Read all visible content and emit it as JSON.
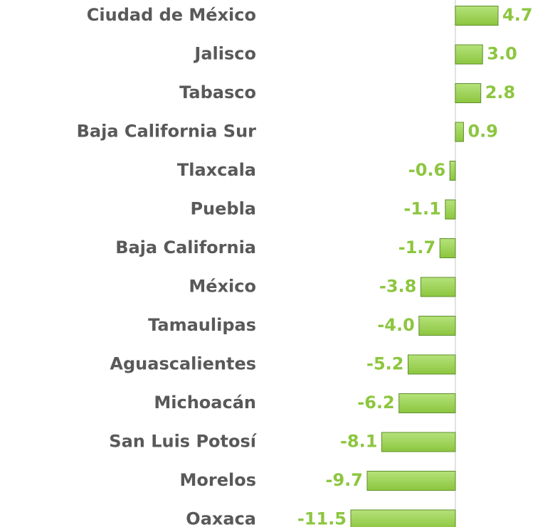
{
  "chart_data": {
    "type": "barh",
    "categories": [
      "Ciudad de México",
      "Jalisco",
      "Tabasco",
      "Baja California Sur",
      "Tlaxcala",
      "Puebla",
      "Baja California",
      "México",
      "Tamaulipas",
      "Aguascalientes",
      "Michoacán",
      "San Luis Potosí",
      "Morelos",
      "Oaxaca"
    ],
    "values": [
      4.7,
      3.0,
      2.8,
      0.9,
      -0.6,
      -1.1,
      -1.7,
      -3.8,
      -4.0,
      -5.2,
      -6.2,
      -8.1,
      -9.7,
      -11.5
    ],
    "value_labels": [
      "4.7",
      "3.0",
      "2.8",
      "0.9",
      "-0.6",
      "-1.1",
      "-1.7",
      "-3.8",
      "-4.0",
      "-5.2",
      "-6.2",
      "-8.1",
      "-9.7",
      "-11.5"
    ],
    "color": "#92d050"
  }
}
